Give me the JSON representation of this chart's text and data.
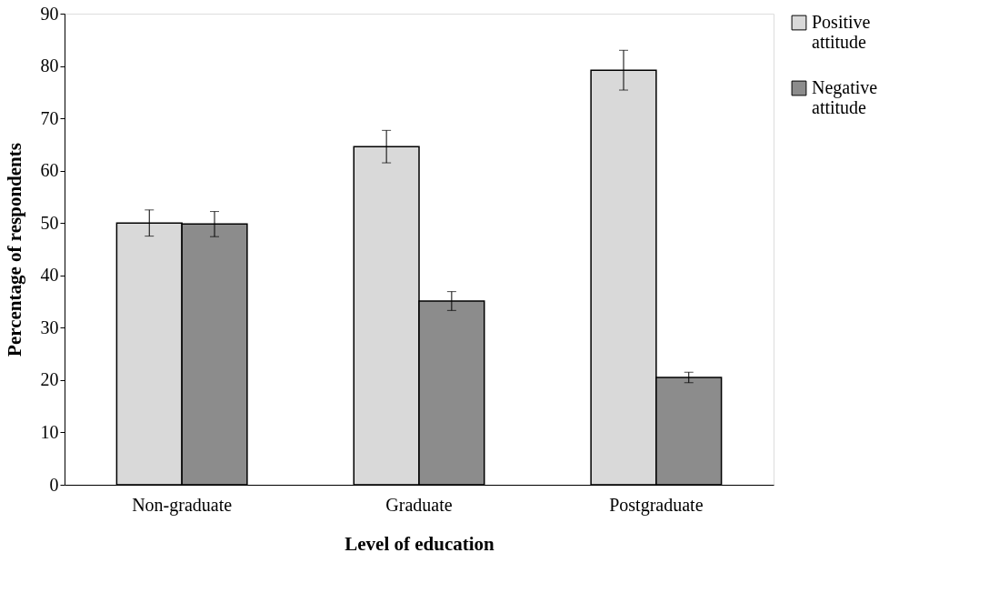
{
  "chart_data": {
    "type": "bar",
    "xlabel": "Level of education",
    "ylabel": "Percentage of respondents",
    "categories": [
      "Non-graduate",
      "Graduate",
      "Postgraduate"
    ],
    "series": [
      {
        "name": "Positive attitude",
        "color": "#d9d9d9",
        "values": [
          50.0,
          64.6,
          79.2
        ],
        "errors": [
          2.5,
          3.1,
          3.8
        ]
      },
      {
        "name": "Negative attitude",
        "color": "#8c8c8c",
        "values": [
          49.8,
          35.1,
          20.5
        ],
        "errors": [
          2.4,
          1.8,
          1.0
        ]
      }
    ],
    "ylim": [
      0,
      90
    ],
    "yticks": [
      0,
      10,
      20,
      30,
      40,
      50,
      60,
      70,
      80,
      90
    ],
    "grid": false,
    "legend": "right"
  }
}
